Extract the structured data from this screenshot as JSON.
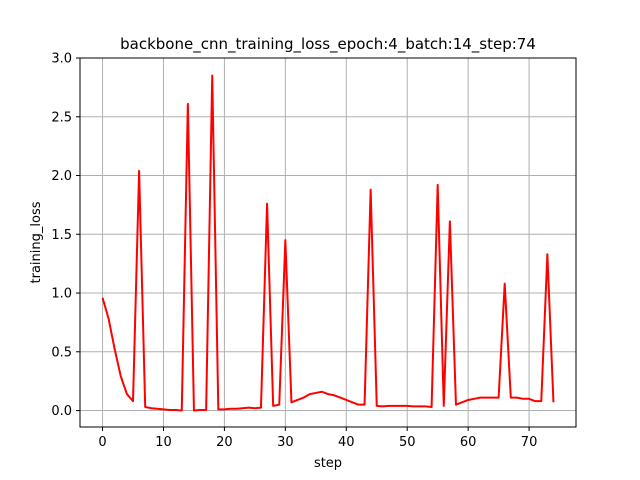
{
  "chart_data": {
    "type": "line",
    "title": "backbone_cnn_training_loss_epoch:4_batch:14_step:74",
    "xlabel": "step",
    "ylabel": "training_loss",
    "xlim": [
      -3.7,
      77.7
    ],
    "ylim": [
      -0.14,
      3.0
    ],
    "xticks": [
      0,
      10,
      20,
      30,
      40,
      50,
      60,
      70
    ],
    "yticks": [
      0.0,
      0.5,
      1.0,
      1.5,
      2.0,
      2.5,
      3.0
    ],
    "xtick_labels": [
      "0",
      "10",
      "20",
      "30",
      "40",
      "50",
      "60",
      "70"
    ],
    "ytick_labels": [
      "0.0",
      "0.5",
      "1.0",
      "1.5",
      "2.0",
      "2.5",
      "3.0"
    ],
    "grid": true,
    "series": [
      {
        "color": "#ff0000",
        "x": [
          0,
          1,
          2,
          3,
          4,
          5,
          6,
          7,
          8,
          9,
          10,
          11,
          12,
          13,
          14,
          15,
          16,
          17,
          18,
          19,
          20,
          21,
          22,
          23,
          24,
          25,
          26,
          27,
          28,
          29,
          30,
          31,
          32,
          33,
          34,
          35,
          36,
          37,
          38,
          39,
          40,
          41,
          42,
          43,
          44,
          45,
          46,
          47,
          48,
          49,
          50,
          51,
          52,
          53,
          54,
          55,
          56,
          57,
          58,
          59,
          60,
          61,
          62,
          63,
          64,
          65,
          66,
          67,
          68,
          69,
          70,
          71,
          72,
          73,
          74
        ],
        "y": [
          0.96,
          0.78,
          0.52,
          0.29,
          0.14,
          0.08,
          2.04,
          0.03,
          0.02,
          0.015,
          0.01,
          0.005,
          0.005,
          0.0,
          2.61,
          0.0,
          0.005,
          0.005,
          2.85,
          0.01,
          0.01,
          0.015,
          0.015,
          0.02,
          0.025,
          0.02,
          0.025,
          1.76,
          0.04,
          0.05,
          1.45,
          0.07,
          0.09,
          0.11,
          0.14,
          0.15,
          0.16,
          0.14,
          0.13,
          0.11,
          0.09,
          0.07,
          0.05,
          0.05,
          1.88,
          0.04,
          0.035,
          0.04,
          0.04,
          0.04,
          0.04,
          0.035,
          0.035,
          0.035,
          0.03,
          1.92,
          0.04,
          1.61,
          0.05,
          0.07,
          0.09,
          0.1,
          0.11,
          0.11,
          0.11,
          0.11,
          1.08,
          0.11,
          0.11,
          0.1,
          0.1,
          0.08,
          0.08,
          1.33,
          0.07
        ]
      }
    ]
  }
}
